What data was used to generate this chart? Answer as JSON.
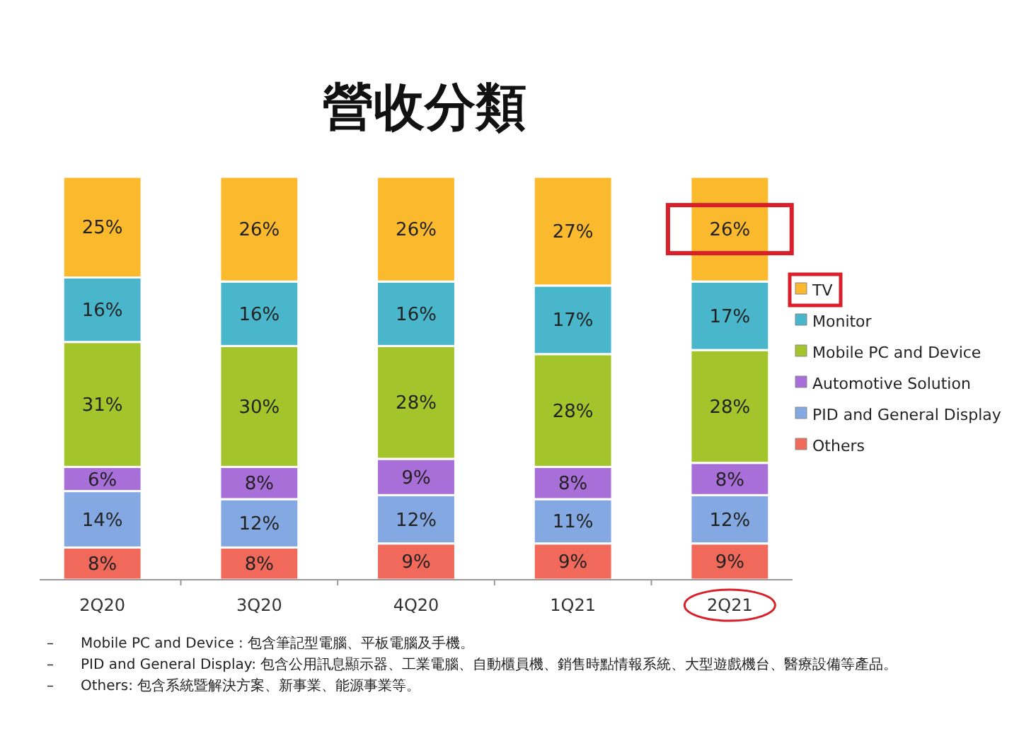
{
  "chart_data": {
    "type": "bar",
    "stacked": true,
    "title": "營收分類",
    "categories": [
      "2Q20",
      "3Q20",
      "4Q20",
      "1Q21",
      "2Q21"
    ],
    "series": [
      {
        "name": "Others",
        "color": "#f0695a",
        "values": [
          8,
          8,
          9,
          9,
          9
        ],
        "value_labels": [
          "8%",
          "8%",
          "9%",
          "9%",
          "9%"
        ]
      },
      {
        "name": "PID and General Display",
        "color": "#84a9e2",
        "values": [
          14,
          12,
          12,
          11,
          12
        ],
        "value_labels": [
          "14%",
          "12%",
          "12%",
          "11%",
          "12%"
        ]
      },
      {
        "name": "Automotive Solution",
        "color": "#a86fd8",
        "values": [
          6,
          8,
          9,
          8,
          8
        ],
        "value_labels": [
          "6%",
          "8%",
          "9%",
          "8%",
          "8%"
        ]
      },
      {
        "name": "Mobile PC and Device",
        "color": "#a3c52b",
        "values": [
          31,
          30,
          28,
          28,
          28
        ],
        "value_labels": [
          "31%",
          "30%",
          "28%",
          "28%",
          "28%"
        ]
      },
      {
        "name": "Monitor",
        "color": "#4ab6cb",
        "values": [
          16,
          16,
          16,
          17,
          17
        ],
        "value_labels": [
          "16%",
          "16%",
          "16%",
          "17%",
          "17%"
        ]
      },
      {
        "name": "TV",
        "color": "#fbb92e",
        "values": [
          25,
          26,
          26,
          27,
          26
        ],
        "value_labels": [
          "25%",
          "26%",
          "26%",
          "27%",
          "26%"
        ]
      }
    ],
    "legend": "right",
    "annotations": [
      "–\tMobile PC and Device : 包含筆記型電腦、平板電腦及手機。",
      "–\tPID and General Display: 包含公用訊息顯示器、工業電腦、自動櫃員機、銷售時點情報系統、大型遊戲機台、醫療設備等產品。",
      "–\tOthers: 包含系統暨解決方案、新事業、能源事業等。"
    ]
  }
}
